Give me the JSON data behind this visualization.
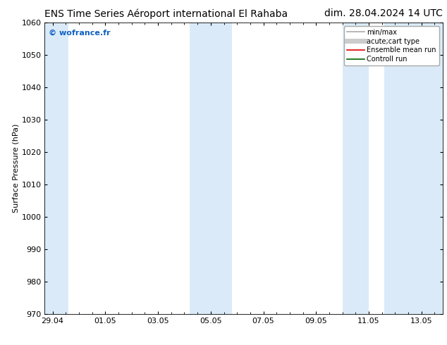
{
  "title_left": "ENS Time Series Aéroport international El Rahaba",
  "title_right": "dim. 28.04.2024 14 UTC",
  "ylabel": "Surface Pressure (hPa)",
  "ylim": [
    970,
    1060
  ],
  "yticks": [
    970,
    980,
    990,
    1000,
    1010,
    1020,
    1030,
    1040,
    1050,
    1060
  ],
  "xtick_labels": [
    "29.04",
    "01.05",
    "03.05",
    "05.05",
    "07.05",
    "09.05",
    "11.05",
    "13.05"
  ],
  "xtick_positions": [
    0,
    2,
    4,
    6,
    8,
    10,
    12,
    14
  ],
  "xlim": [
    -0.3,
    14.8
  ],
  "watermark": "© wofrance.fr",
  "watermark_color": "#1060c0",
  "bg_color": "#ffffff",
  "shaded_color": "#daeaf8",
  "shaded_regions": [
    {
      "x_start": -0.3,
      "x_end": 0.6
    },
    {
      "x_start": 5.2,
      "x_end": 6.8
    },
    {
      "x_start": 11.0,
      "x_end": 12.0
    },
    {
      "x_start": 12.6,
      "x_end": 14.8
    }
  ],
  "legend_entries": [
    {
      "label": "min/max",
      "color": "#aaaaaa",
      "lw": 1.2
    },
    {
      "label": "acute;cart type",
      "color": "#cccccc",
      "lw": 5
    },
    {
      "label": "Ensemble mean run",
      "color": "#dd0000",
      "lw": 1.2
    },
    {
      "label": "Controll run",
      "color": "#006600",
      "lw": 1.2
    }
  ],
  "title_fontsize": 10,
  "ylabel_fontsize": 8,
  "tick_fontsize": 8,
  "watermark_fontsize": 8,
  "legend_fontsize": 7
}
